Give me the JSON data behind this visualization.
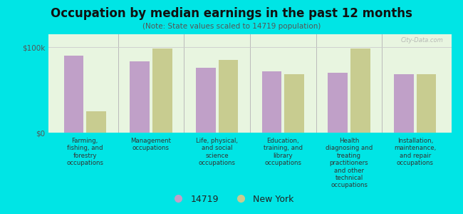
{
  "title": "Occupation by median earnings in the past 12 months",
  "subtitle": "(Note: State values scaled to 14719 population)",
  "background_color": "#00e5e5",
  "plot_bg_top": "#ddeedd",
  "plot_bg_bottom": "#f0f8e8",
  "categories": [
    "Farming,\nfishing, and\nforestry\noccupations",
    "Management\noccupations",
    "Life, physical,\nand social\nscience\noccupations",
    "Education,\ntraining, and\nlibrary\noccupations",
    "Health\ndiagnosing and\ntreating\npractitioners\nand other\ntechnical\noccupations",
    "Installation,\nmaintenance,\nand repair\noccupations"
  ],
  "values_14719": [
    90000,
    83000,
    76000,
    72000,
    70000,
    68000
  ],
  "values_ny": [
    25000,
    98000,
    85000,
    68000,
    98000,
    68000
  ],
  "color_14719": "#c0a0c8",
  "color_ny": "#c8cc90",
  "ylim": [
    0,
    115000
  ],
  "ytick_vals": [
    0,
    100000
  ],
  "ytick_labels": [
    "$0",
    "$100k"
  ],
  "legend_14719": "14719",
  "legend_ny": "New York",
  "watermark": "City-Data.com"
}
